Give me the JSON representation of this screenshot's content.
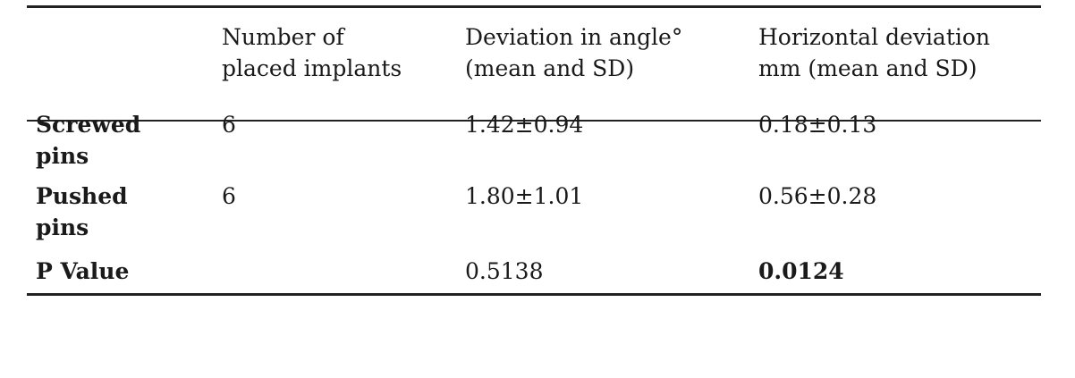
{
  "table": {
    "headers": [
      "",
      [
        "Number of",
        "placed implants"
      ],
      [
        "Deviation in angle°",
        "(mean and SD)"
      ],
      [
        "Horizontal deviation",
        "mm (mean and SD)"
      ]
    ],
    "rows": [
      {
        "label": [
          "Screwed",
          "pins"
        ],
        "cells": [
          "6",
          "1.42±0.94",
          "0.18±0.13"
        ]
      },
      {
        "label": [
          "Pushed",
          "pins"
        ],
        "cells": [
          "6",
          "1.80±1.01",
          "0.56±0.28"
        ]
      },
      {
        "label": [
          "P Value"
        ],
        "cells": [
          "",
          "0.5138",
          "0.0124"
        ]
      }
    ]
  }
}
